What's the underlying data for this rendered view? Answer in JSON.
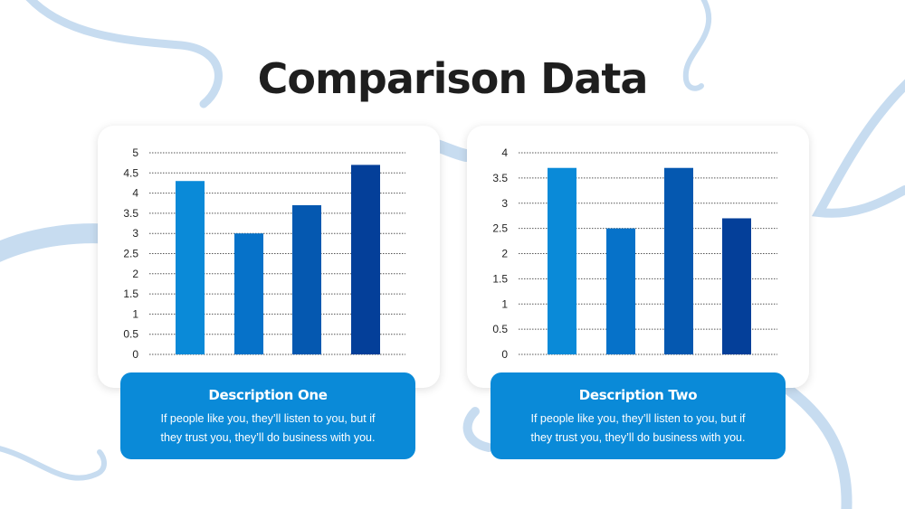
{
  "title": "Comparison Data",
  "colors": {
    "bar_1": "#0a8ad8",
    "bar_2": "#0672c9",
    "bar_3": "#0558b0",
    "bar_4": "#043f99",
    "description_box": "#0a8ad8",
    "ribbon": "#c7dcf0"
  },
  "cards": [
    {
      "description_title": "Description One",
      "description_line1": "If people like you, they’ll listen to you, but if",
      "description_line2": "they trust you, they’ll do business with you."
    },
    {
      "description_title": "Description Two",
      "description_line1": "If people like you, they’ll listen to you, but if",
      "description_line2": "they trust you, they’ll do business with you."
    }
  ],
  "chart_data": [
    {
      "type": "bar",
      "categories": [
        "",
        "",
        "",
        ""
      ],
      "values": [
        4.3,
        3.0,
        3.7,
        4.7
      ],
      "ylim": [
        0,
        5
      ],
      "yticks": [
        "0",
        "0.5",
        "1",
        "1.5",
        "2",
        "2.5",
        "3",
        "3.5",
        "4",
        "4.5",
        "5"
      ],
      "grid": true,
      "legend": "none"
    },
    {
      "type": "bar",
      "categories": [
        "",
        "",
        "",
        ""
      ],
      "values": [
        3.7,
        2.5,
        3.7,
        2.7
      ],
      "ylim": [
        0,
        4
      ],
      "yticks": [
        "0",
        "0.5",
        "1",
        "1.5",
        "2",
        "2.5",
        "3",
        "3.5",
        "4"
      ],
      "grid": true,
      "legend": "none"
    }
  ]
}
